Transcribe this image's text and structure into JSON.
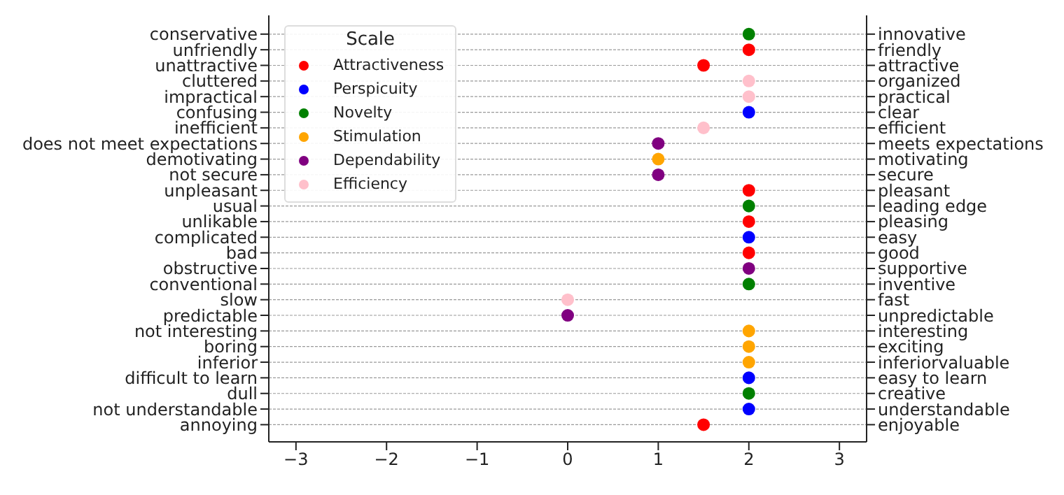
{
  "chart_data": {
    "type": "scatter",
    "orientation": "horizontal",
    "legend_title": "Scale",
    "legend": "top left",
    "grid": "y",
    "marker": "circle",
    "categories": [
      "conservative",
      "unfriendly",
      "unattractive",
      "cluttered",
      "impractical",
      "confusing",
      "inefficient",
      "does not meet expectations",
      "demotivating",
      "not secure",
      "unpleasant",
      "usual",
      "unlikable",
      "complicated",
      "bad",
      "obstructive",
      "conventional",
      "slow",
      "predictable",
      "not interesting",
      "boring",
      "inferior",
      "difficult to learn",
      "dull",
      "not understandable",
      "annoying"
    ],
    "y2_categories": [
      "innovative",
      "friendly",
      "attractive",
      "organized",
      "practical",
      "clear",
      "efficient",
      "meets expectations",
      "motivating",
      "secure",
      "pleasant",
      "leading edge",
      "pleasing",
      "easy",
      "good",
      "supportive",
      "inventive",
      "fast",
      "unpredictable",
      "interesting",
      "exciting",
      "inferiorvaluable",
      "easy to learn",
      "creative",
      "understandable",
      "enjoyable"
    ],
    "xlim": [
      -3.3,
      3.3
    ],
    "xticks": [
      -3,
      -2,
      -1,
      0,
      1,
      2,
      3
    ],
    "series": [
      {
        "name": "Attractiveness",
        "color": "#ff0000",
        "values": [
          null,
          2,
          1.5,
          null,
          null,
          null,
          null,
          null,
          null,
          null,
          2,
          null,
          2,
          null,
          2,
          null,
          null,
          null,
          null,
          null,
          null,
          null,
          null,
          null,
          null,
          1.5
        ]
      },
      {
        "name": "Perspicuity",
        "color": "#0000ff",
        "values": [
          null,
          null,
          null,
          null,
          null,
          2,
          null,
          null,
          null,
          null,
          null,
          null,
          null,
          2,
          null,
          null,
          null,
          null,
          null,
          null,
          null,
          null,
          2,
          null,
          2,
          null
        ]
      },
      {
        "name": "Novelty",
        "color": "#008000",
        "values": [
          2,
          null,
          null,
          null,
          null,
          null,
          null,
          null,
          null,
          null,
          null,
          2,
          null,
          null,
          null,
          null,
          2,
          null,
          null,
          null,
          null,
          null,
          null,
          2,
          null,
          null
        ]
      },
      {
        "name": "Stimulation",
        "color": "#ffa500",
        "values": [
          null,
          null,
          null,
          null,
          null,
          null,
          null,
          null,
          1,
          null,
          null,
          null,
          null,
          null,
          null,
          null,
          null,
          null,
          null,
          2,
          2,
          2,
          null,
          null,
          null,
          null
        ]
      },
      {
        "name": "Dependability",
        "color": "#800080",
        "values": [
          null,
          null,
          null,
          null,
          null,
          null,
          null,
          1,
          null,
          1,
          null,
          null,
          null,
          null,
          null,
          2,
          null,
          null,
          0,
          null,
          null,
          null,
          null,
          null,
          null,
          null
        ]
      },
      {
        "name": "Efficiency",
        "color": "#ffc0cb",
        "values": [
          null,
          null,
          null,
          2,
          2,
          null,
          1.5,
          null,
          null,
          null,
          null,
          null,
          null,
          null,
          null,
          null,
          null,
          0,
          null,
          null,
          null,
          null,
          null,
          null,
          null,
          null
        ]
      }
    ]
  }
}
